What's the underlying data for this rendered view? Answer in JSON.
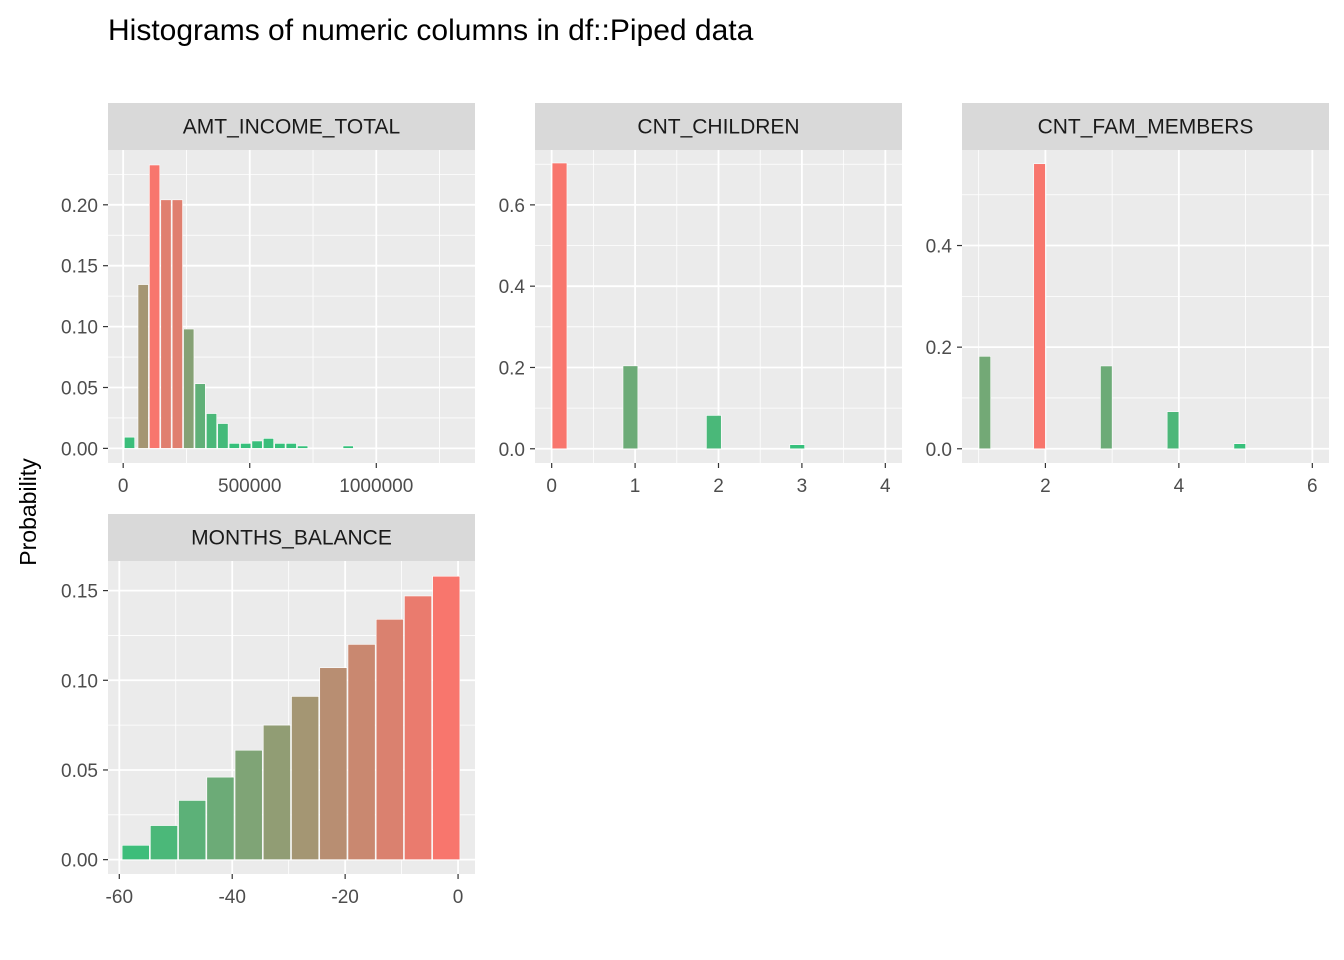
{
  "title": "Histograms of numeric columns in df::Piped data",
  "ylabel": "Probability",
  "colors": {
    "panel_bg": "#ebebeb",
    "strip_bg": "#d9d9d9",
    "grid_major": "#ffffff",
    "tick": "#333333",
    "high": "#f8766d",
    "low": "#33c17b"
  },
  "chart_data": [
    {
      "type": "bar",
      "facet": "AMT_INCOME_TOTAL",
      "xlim": [
        -60000,
        1390000
      ],
      "ylim": [
        -0.012,
        0.245
      ],
      "xticks": [
        0,
        500000,
        1000000
      ],
      "xtick_labels": [
        "0",
        "500000",
        "1000000"
      ],
      "yticks": [
        0,
        0.05,
        0.1,
        0.15,
        0.2
      ],
      "ytick_labels": [
        "0.00",
        "0.05",
        "0.10",
        "0.15",
        "0.20"
      ],
      "bin_width": 45000,
      "x": [
        27000,
        81000,
        126000,
        171000,
        216000,
        261000,
        306000,
        351000,
        396000,
        441000,
        486000,
        531000,
        576000,
        621000,
        666000,
        711000,
        891000
      ],
      "values": [
        0.0092,
        0.1345,
        0.2327,
        0.2041,
        0.2041,
        0.098,
        0.0531,
        0.0286,
        0.0204,
        0.0041,
        0.0041,
        0.0061,
        0.0082,
        0.0041,
        0.0041,
        0.002,
        0.002
      ]
    },
    {
      "type": "bar",
      "facet": "CNT_CHILDREN",
      "xlim": [
        -0.2,
        4.2
      ],
      "ylim": [
        -0.035,
        0.735
      ],
      "xticks": [
        0,
        1,
        2,
        3,
        4
      ],
      "xtick_labels": [
        "0",
        "1",
        "2",
        "3",
        "4"
      ],
      "yticks": [
        0,
        0.2,
        0.4,
        0.6
      ],
      "ytick_labels": [
        "0.0",
        "0.2",
        "0.4",
        "0.6"
      ],
      "bin_width": 0.19,
      "x": [
        0.1,
        0.95,
        1.95,
        2.95
      ],
      "values": [
        0.703,
        0.204,
        0.082,
        0.01
      ]
    },
    {
      "type": "bar",
      "facet": "CNT_FAM_MEMBERS",
      "xlim": [
        0.75,
        6.25
      ],
      "ylim": [
        -0.028,
        0.588
      ],
      "xticks": [
        2,
        4,
        6
      ],
      "xtick_labels": [
        "2",
        "4",
        "6"
      ],
      "yticks": [
        0,
        0.2,
        0.4
      ],
      "ytick_labels": [
        "0.0",
        "0.2",
        "0.4"
      ],
      "bin_width": 0.19,
      "x": [
        1.1,
        1.92,
        2.92,
        3.92,
        4.92
      ],
      "values": [
        0.182,
        0.561,
        0.163,
        0.073,
        0.01
      ]
    },
    {
      "type": "bar",
      "facet": "MONTHS_BALANCE",
      "xlim": [
        -62,
        3
      ],
      "ylim": [
        -0.008,
        0.1665
      ],
      "xticks": [
        -60,
        -40,
        -20,
        0
      ],
      "xtick_labels": [
        "-60",
        "-40",
        "-20",
        "0"
      ],
      "yticks": [
        0,
        0.05,
        0.1,
        0.15
      ],
      "ytick_labels": [
        "0.00",
        "0.05",
        "0.10",
        "0.15"
      ],
      "bin_width": 5,
      "x": [
        -57,
        -52,
        -47,
        -42,
        -37,
        -32,
        -27,
        -22,
        -17,
        -12,
        -7,
        -2
      ],
      "values": [
        0.008,
        0.019,
        0.033,
        0.046,
        0.061,
        0.075,
        0.091,
        0.107,
        0.12,
        0.134,
        0.147,
        0.158
      ]
    }
  ]
}
